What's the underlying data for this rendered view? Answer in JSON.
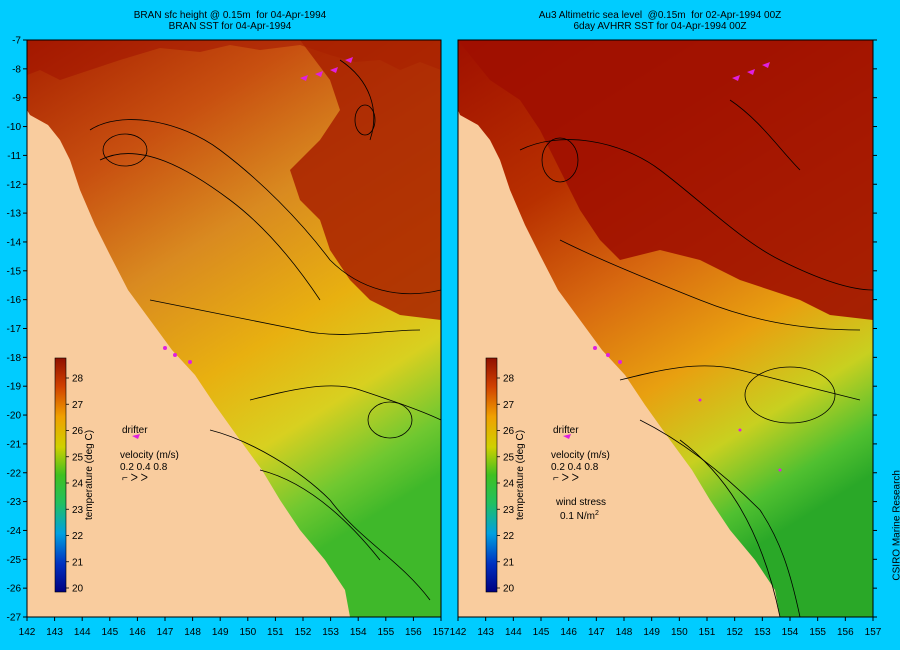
{
  "panels": [
    {
      "title_line1": "BRAN sfc height @ 0.15m  for 04-Apr-1994",
      "title_line2": "BRAN SST for 04-Apr-1994",
      "legend": {
        "drifter": "drifter",
        "velocity_label": "velocity (m/s)",
        "velocity_values": "0.2 0.4 0.8"
      }
    },
    {
      "title_line1": "Au3 Altimetric sea level  @0.15m  for 02-Apr-1994 00Z",
      "title_line2": "6day AVHRR SST for 04-Apr-1994 00Z",
      "legend": {
        "drifter": "drifter",
        "velocity_label": "velocity (m/s)",
        "velocity_values": "0.2 0.4 0.8",
        "wind_label": "wind stress",
        "wind_value": "0.1 N/m",
        "wind_exp": "2"
      }
    }
  ],
  "colorbar": {
    "label": "temperature (deg C)",
    "ticks": [
      "20",
      "21",
      "22",
      "23",
      "24",
      "25",
      "26",
      "27",
      "28"
    ]
  },
  "axes": {
    "x_ticks": [
      "142",
      "143",
      "144",
      "145",
      "146",
      "147",
      "148",
      "149",
      "150",
      "151",
      "152",
      "153",
      "154",
      "155",
      "156",
      "157"
    ],
    "y_ticks": [
      "-7",
      "-8",
      "-9",
      "-10",
      "-11",
      "-12",
      "-13",
      "-14",
      "-15",
      "-16",
      "-17",
      "-18",
      "-19",
      "-20",
      "-21",
      "-22",
      "-23",
      "-24",
      "-25",
      "-26",
      "-27"
    ]
  },
  "credit": "CSIRO Marine Research",
  "colors": {
    "background": "#00ccff",
    "land": "#f9cc9e",
    "sst_hot": "#a01000",
    "sst_warm": "#d97a14",
    "sst_mid": "#f2b000",
    "sst_cool": "#3fbf2a",
    "frame": "#000000"
  }
}
